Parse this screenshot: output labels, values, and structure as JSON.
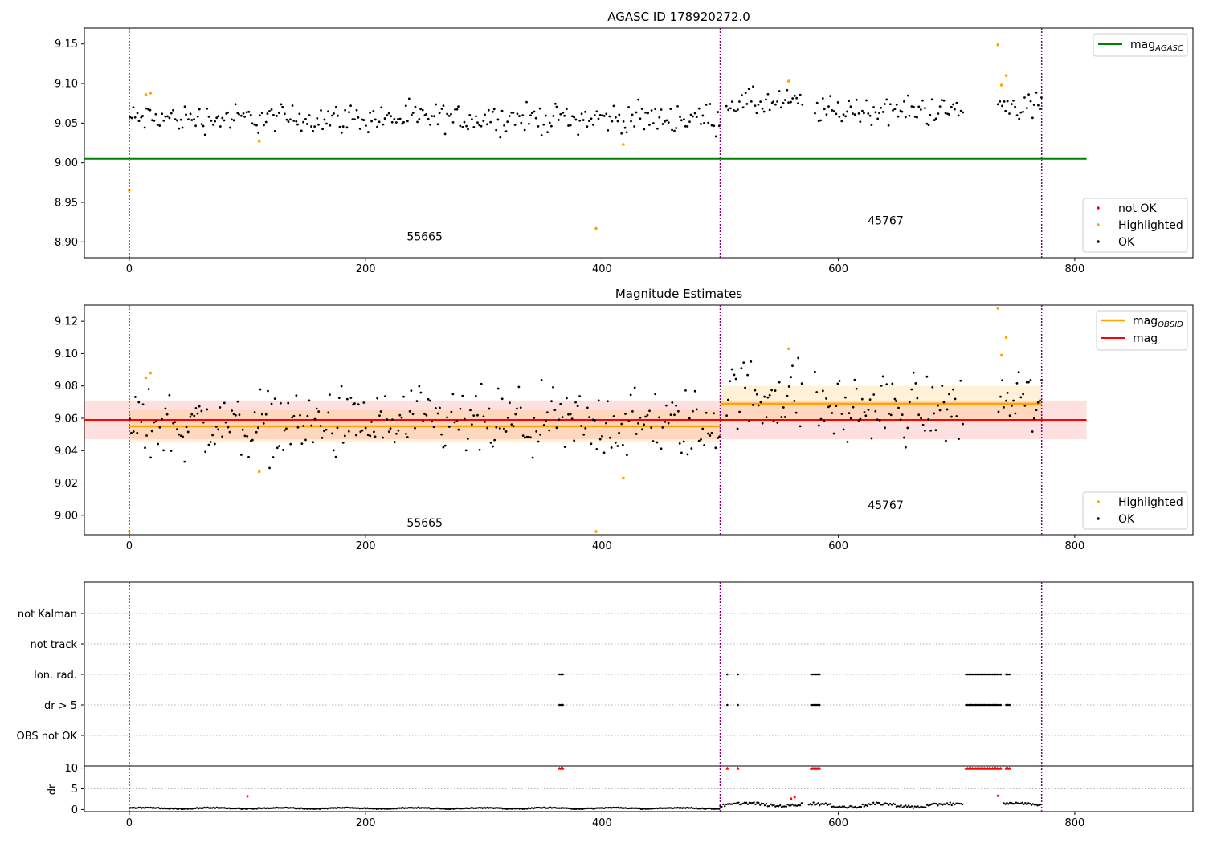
{
  "chart_data": [
    {
      "type": "scatter",
      "title": "AGASC ID 178920272.0",
      "xlim": [
        -38,
        900
      ],
      "ylim": [
        8.88,
        9.17
      ],
      "x_ticks": [
        0,
        200,
        400,
        600,
        800
      ],
      "y_ticks": [
        8.9,
        8.95,
        9.0,
        9.05,
        9.1,
        9.15
      ],
      "obs_boundaries": [
        0,
        500,
        772
      ],
      "obsid_annotations": [
        {
          "label": "55665",
          "x": 250,
          "y": 8.902
        },
        {
          "label": "45767",
          "x": 640,
          "y": 8.922
        }
      ],
      "mag_agasc": 9.005,
      "mag_agasc_xrange": [
        -38,
        810
      ],
      "legend_upper": [
        "mag",
        "AGASC"
      ],
      "legend_lower": [
        "not OK",
        "Highlighted",
        "OK"
      ],
      "ok_ranges": [
        {
          "x": [
            0,
            500
          ],
          "center": 9.056
        },
        {
          "x": [
            505,
            570
          ],
          "center": 9.075
        },
        {
          "x": [
            580,
            705
          ],
          "center": 9.066
        },
        {
          "x": [
            735,
            772
          ],
          "center": 9.072
        }
      ],
      "highlighted": [
        {
          "x": 0,
          "y": 8.965
        },
        {
          "x": 14,
          "y": 9.086
        },
        {
          "x": 18,
          "y": 9.088
        },
        {
          "x": 110,
          "y": 9.027
        },
        {
          "x": 395,
          "y": 8.917
        },
        {
          "x": 418,
          "y": 9.023
        },
        {
          "x": 558,
          "y": 9.103
        },
        {
          "x": 735,
          "y": 9.149
        },
        {
          "x": 738,
          "y": 9.098
        },
        {
          "x": 742,
          "y": 9.11
        }
      ],
      "not_ok": []
    },
    {
      "type": "scatter",
      "title": "Magnitude Estimates",
      "xlim": [
        -38,
        900
      ],
      "ylim": [
        8.988,
        9.13
      ],
      "x_ticks": [
        0,
        200,
        400,
        600,
        800
      ],
      "y_ticks": [
        9.0,
        9.02,
        9.04,
        9.06,
        9.08,
        9.1,
        9.12
      ],
      "obs_boundaries": [
        0,
        500,
        772
      ],
      "obsid_annotations": [
        {
          "label": "55665",
          "x": 250,
          "y": 8.993
        },
        {
          "label": "45767",
          "x": 640,
          "y": 9.004
        }
      ],
      "mag": {
        "value": 9.059,
        "band": [
          9.047,
          9.071
        ],
        "xrange": [
          -38,
          810
        ]
      },
      "mag_obsid": [
        {
          "x": [
            0,
            500
          ],
          "value": 9.055,
          "band": [
            9.045,
            9.065
          ]
        },
        {
          "x": [
            500,
            772
          ],
          "value": 9.069,
          "band": [
            9.059,
            9.08
          ]
        }
      ],
      "legend_upper": [
        "mag",
        "OBSID",
        "mag"
      ],
      "legend_lower": [
        "Highlighted",
        "OK"
      ],
      "ok_ranges": [
        {
          "x": [
            0,
            500
          ],
          "center": 9.056
        },
        {
          "x": [
            505,
            570
          ],
          "center": 9.075
        },
        {
          "x": [
            580,
            705
          ],
          "center": 9.066
        },
        {
          "x": [
            735,
            772
          ],
          "center": 9.072
        }
      ],
      "highlighted": [
        {
          "x": 0,
          "y": 8.99
        },
        {
          "x": 14,
          "y": 9.085
        },
        {
          "x": 18,
          "y": 9.088
        },
        {
          "x": 110,
          "y": 9.027
        },
        {
          "x": 395,
          "y": 8.99
        },
        {
          "x": 418,
          "y": 9.023
        },
        {
          "x": 558,
          "y": 9.103
        },
        {
          "x": 735,
          "y": 9.128
        },
        {
          "x": 738,
          "y": 9.099
        },
        {
          "x": 742,
          "y": 9.11
        }
      ]
    },
    {
      "type": "scatter",
      "title": "",
      "xlim": [
        -38,
        900
      ],
      "x_ticks": [
        0,
        200,
        400,
        600,
        800
      ],
      "categories": [
        "not Kalman",
        "not track",
        "Ion. rad.",
        "dr > 5",
        "OBS not OK"
      ],
      "obs_boundaries": [
        0,
        500,
        772
      ],
      "flag_ranges": [
        {
          "x": [
            364,
            368
          ]
        },
        {
          "x": [
            506,
            506
          ]
        },
        {
          "x": [
            515,
            515
          ]
        },
        {
          "x": [
            577,
            584
          ]
        },
        {
          "x": [
            708,
            738
          ]
        },
        {
          "x": [
            742,
            746
          ]
        }
      ],
      "dr": {
        "ylabel": "dr",
        "y_ticks": [
          0,
          5,
          10
        ],
        "ylim": [
          -0.5,
          10.5
        ],
        "clipped_value": 10,
        "red_points": [
          {
            "x": 100,
            "y": 3.2
          },
          {
            "x": 560,
            "y": 2.6
          },
          {
            "x": 563,
            "y": 3.0
          },
          {
            "x": 735,
            "y": 3.3
          }
        ]
      }
    }
  ],
  "colors": {
    "ok": "#000000",
    "highlighted": "#ffa500",
    "not_ok": "#ff0000",
    "agasc_line": "#008000",
    "mag_line": "#ff0000",
    "obsid_line": "#ffa500",
    "boundary": "#800080"
  }
}
